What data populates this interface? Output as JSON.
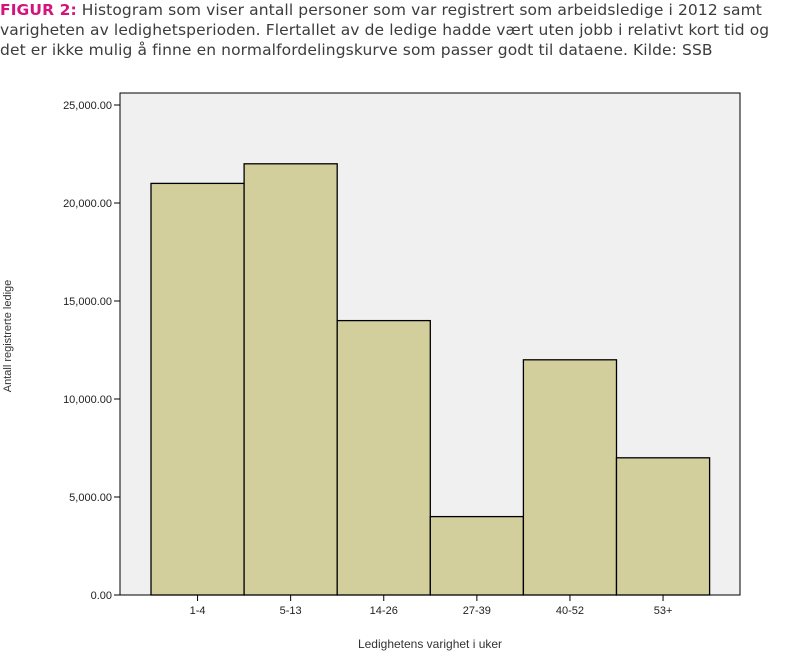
{
  "caption": {
    "label": "FIGUR 2:",
    "text": " Histogram som viser antall personer som var registrert som arbeidsledige i 2012 samt varigheten av ledighetsperioden. Flertallet av de ledige hadde vært uten jobb i relativt kort tid og det er ikke mulig å finne en normalfordelingskurve som passer godt til dataene. Kilde: SSB"
  },
  "colors": {
    "bar_fill": "#d3cf9c",
    "bar_stroke": "#000000",
    "plot_bg": "#f0f0f0"
  },
  "chart_data": {
    "type": "bar",
    "categories": [
      "1-4",
      "5-13",
      "14-26",
      "27-39",
      "40-52",
      "53+"
    ],
    "values": [
      21000,
      22000,
      14000,
      4000,
      12000,
      7000
    ],
    "xlabel": "Ledighetens varighet i uker",
    "ylabel": "Antall registrerte ledige",
    "ylim": [
      0,
      26000
    ],
    "yticks": [
      0,
      5000,
      10000,
      15000,
      20000,
      25000
    ],
    "ytick_labels": [
      "0.00",
      "5,000.00",
      "10,000.00",
      "15,000.00",
      "20,000.00",
      "25,000.00"
    ],
    "grid": false
  }
}
